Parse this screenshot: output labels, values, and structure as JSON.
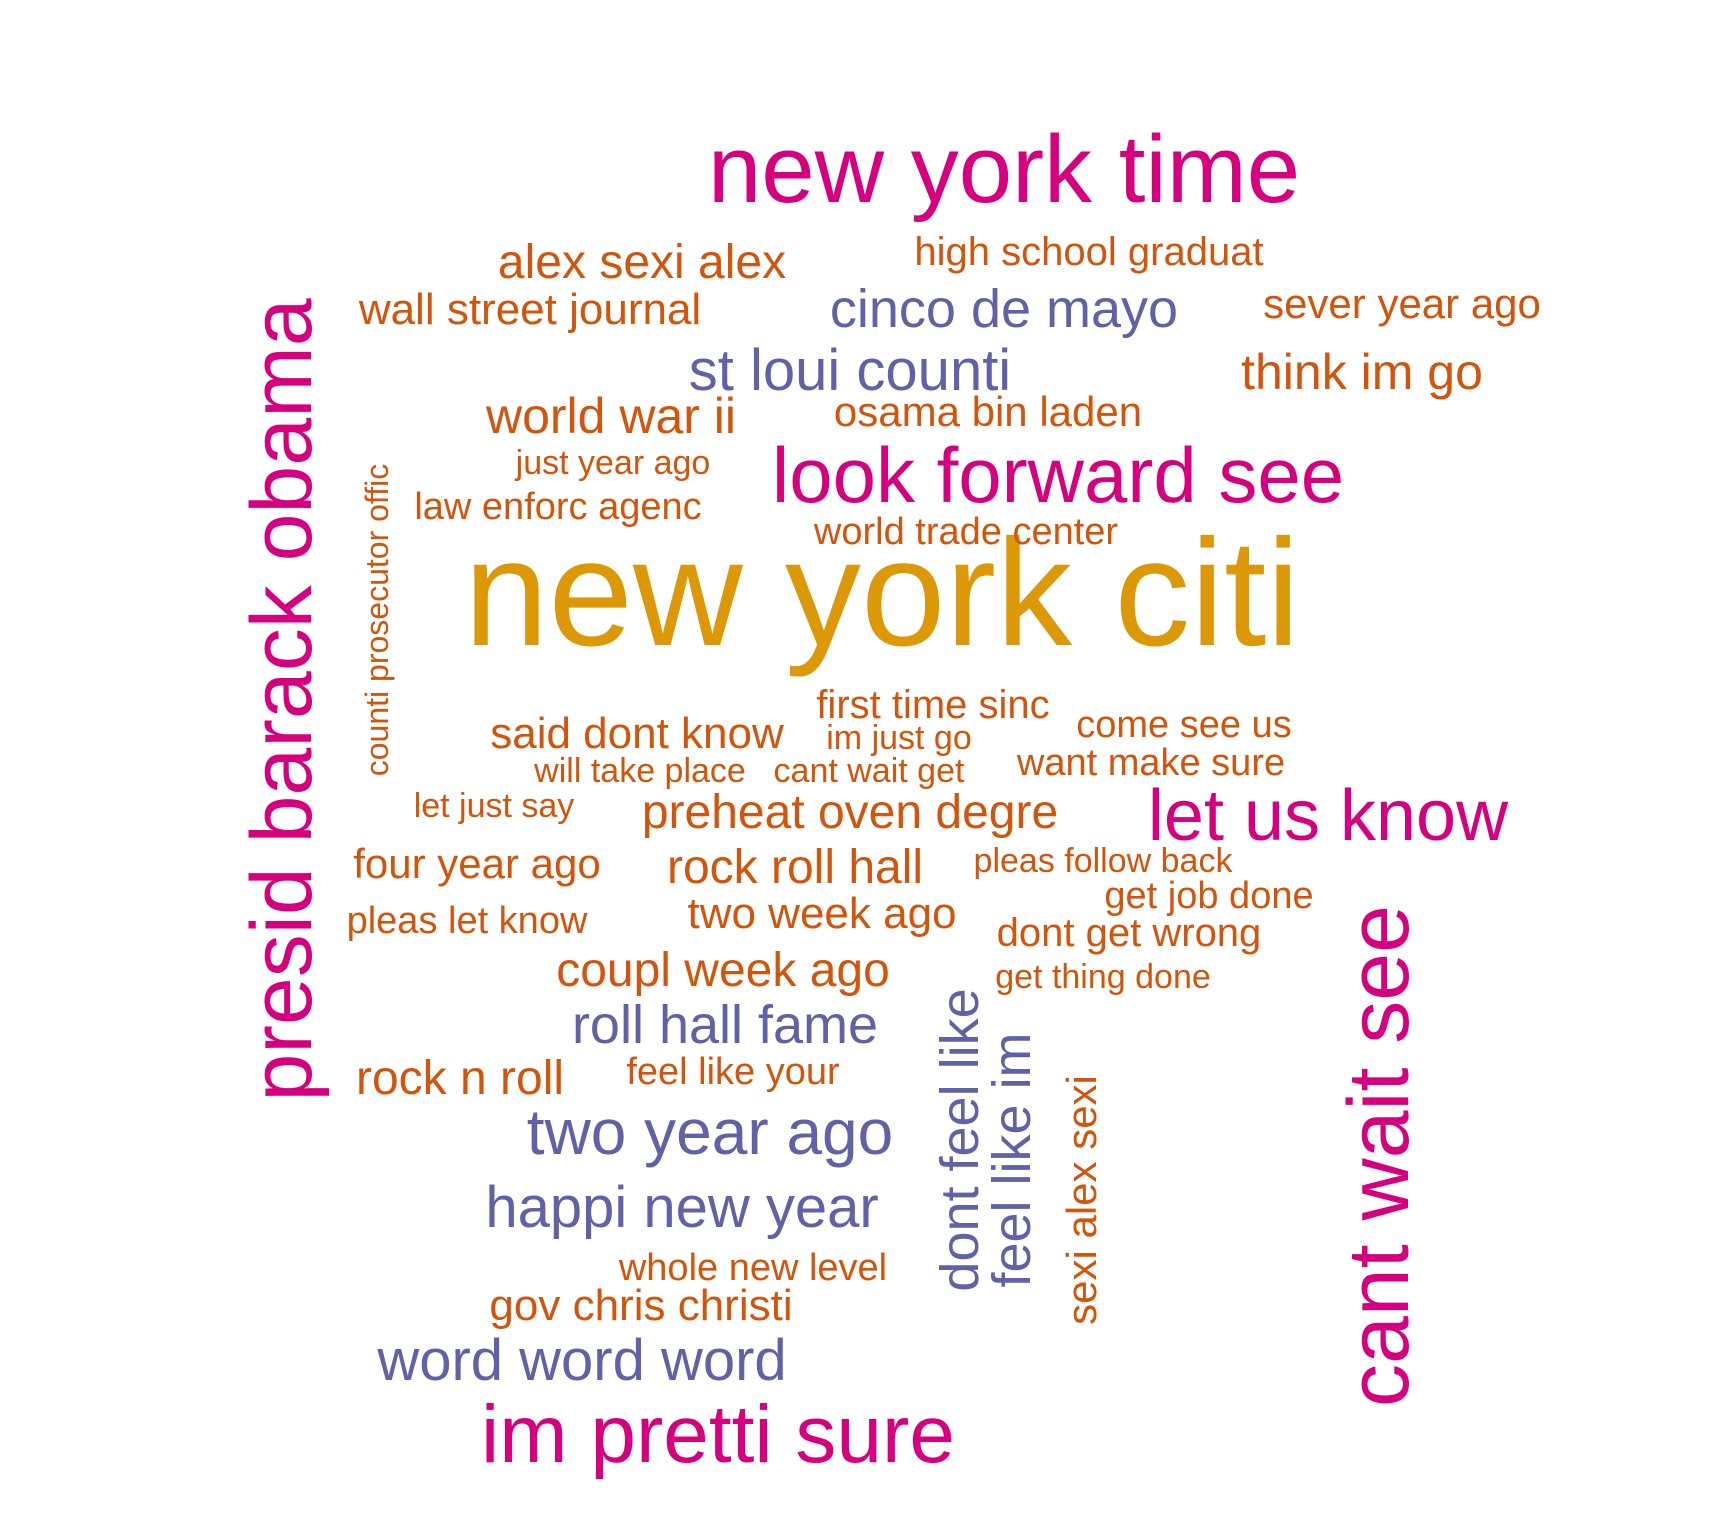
{
  "colors": {
    "magenta": "#d6007f",
    "gold": "#dc9806",
    "purple": "#6061a8",
    "orange": "#d3540b"
  },
  "words": [
    {
      "text": "new york citi",
      "color": "gold"
    },
    {
      "text": "new york time",
      "color": "magenta"
    },
    {
      "text": "presid barack obama",
      "color": "magenta",
      "rotated": true
    },
    {
      "text": "look forward see",
      "color": "magenta"
    },
    {
      "text": "cant wait see",
      "color": "magenta",
      "rotated": true
    },
    {
      "text": "im pretti sure",
      "color": "magenta"
    },
    {
      "text": "let us know",
      "color": "magenta"
    },
    {
      "text": "alex sexi alex",
      "color": "orange"
    },
    {
      "text": "high school graduat",
      "color": "orange"
    },
    {
      "text": "wall street journal",
      "color": "orange"
    },
    {
      "text": "cinco de mayo",
      "color": "purple"
    },
    {
      "text": "sever year ago",
      "color": "orange"
    },
    {
      "text": "st loui counti",
      "color": "purple"
    },
    {
      "text": "think im go",
      "color": "orange"
    },
    {
      "text": "world war ii",
      "color": "orange"
    },
    {
      "text": "osama bin laden",
      "color": "orange"
    },
    {
      "text": "just year ago",
      "color": "orange"
    },
    {
      "text": "law enforc agenc",
      "color": "orange"
    },
    {
      "text": "world trade center",
      "color": "orange"
    },
    {
      "text": "counti prosecutor offic",
      "color": "orange",
      "rotated": true
    },
    {
      "text": "first time sinc",
      "color": "orange"
    },
    {
      "text": "said dont know",
      "color": "orange"
    },
    {
      "text": "im just go",
      "color": "orange"
    },
    {
      "text": "come see us",
      "color": "orange"
    },
    {
      "text": "will take place",
      "color": "orange"
    },
    {
      "text": "cant wait get",
      "color": "orange"
    },
    {
      "text": "want make sure",
      "color": "orange"
    },
    {
      "text": "let just say",
      "color": "orange"
    },
    {
      "text": "preheat oven degre",
      "color": "orange"
    },
    {
      "text": "four year ago",
      "color": "orange"
    },
    {
      "text": "rock roll hall",
      "color": "orange"
    },
    {
      "text": "pleas follow back",
      "color": "orange"
    },
    {
      "text": "get job done",
      "color": "orange"
    },
    {
      "text": "pleas let know",
      "color": "orange"
    },
    {
      "text": "two week ago",
      "color": "orange"
    },
    {
      "text": "dont get wrong",
      "color": "orange"
    },
    {
      "text": "coupl week ago",
      "color": "orange"
    },
    {
      "text": "get thing done",
      "color": "orange"
    },
    {
      "text": "roll hall fame",
      "color": "purple"
    },
    {
      "text": "dont feel like",
      "color": "purple",
      "rotated": true
    },
    {
      "text": "feel like im",
      "color": "purple",
      "rotated": true
    },
    {
      "text": "sexi alex sexi",
      "color": "orange",
      "rotated": true
    },
    {
      "text": "rock n roll",
      "color": "orange"
    },
    {
      "text": "feel like your",
      "color": "orange"
    },
    {
      "text": "two year ago",
      "color": "purple"
    },
    {
      "text": "happi new year",
      "color": "purple"
    },
    {
      "text": "whole new level",
      "color": "orange"
    },
    {
      "text": "gov chris christi",
      "color": "orange"
    },
    {
      "text": "word word word",
      "color": "purple"
    }
  ]
}
